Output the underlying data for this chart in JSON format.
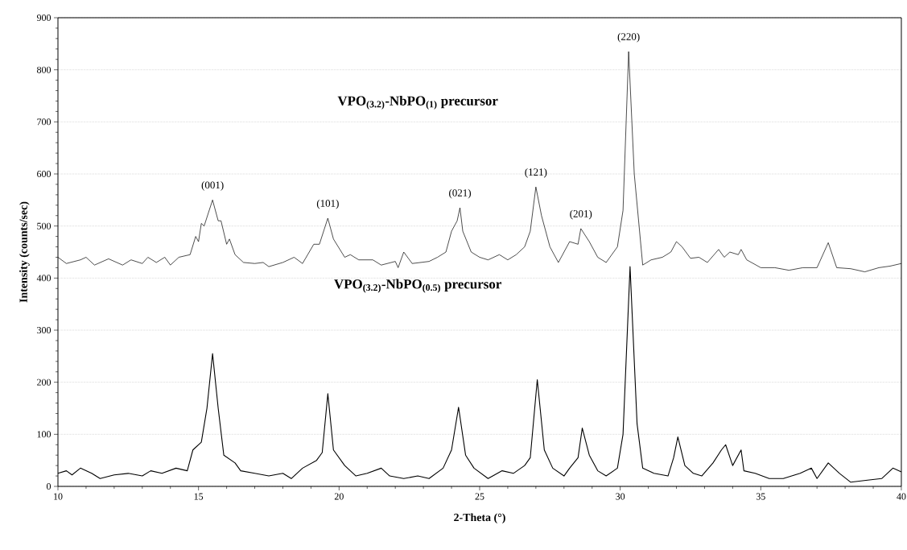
{
  "chart_data": {
    "type": "line",
    "xlabel": "2-Theta (°)",
    "ylabel": "Intensity (counts/sec)",
    "xlim": [
      10,
      40
    ],
    "ylim": [
      0,
      900
    ],
    "xticks": [
      10,
      15,
      20,
      25,
      30,
      35,
      40
    ],
    "yticks": [
      0,
      100,
      200,
      300,
      400,
      500,
      600,
      700,
      800,
      900
    ],
    "grid": "y",
    "line_style": "solid",
    "series": [
      {
        "name": "**VPO$_{(3.2)}$-NbPO$_{(1)}$  precursor**",
        "color": "#000000",
        "x": [
          10,
          10.3,
          10.8,
          11,
          11.3,
          11.8,
          12.3,
          12.6,
          13,
          13.2,
          13.5,
          13.8,
          14,
          14.3,
          14.7,
          14.9,
          15.0,
          15.1,
          15.2,
          15.5,
          15.7,
          15.8,
          16,
          16.1,
          16.3,
          16.6,
          17,
          17.3,
          17.5,
          18,
          18.4,
          18.7,
          19.1,
          19.3,
          19.6,
          19.8,
          20.2,
          20.4,
          20.7,
          21.2,
          21.5,
          22,
          22.1,
          22.3,
          22.6,
          23.2,
          23.5,
          23.8,
          24.0,
          24.2,
          24.3,
          24.4,
          24.7,
          25,
          25.3,
          25.7,
          26,
          26.3,
          26.6,
          26.8,
          27.0,
          27.2,
          27.5,
          27.8,
          28.0,
          28.2,
          28.5,
          28.6,
          28.9,
          29.2,
          29.5,
          29.9,
          30.1,
          30.3,
          30.5,
          30.8,
          31.1,
          31.5,
          31.8,
          32.0,
          32.2,
          32.5,
          32.8,
          33.1,
          33.5,
          33.7,
          33.9,
          34.2,
          34.3,
          34.5,
          35,
          35.5,
          36,
          36.5,
          37,
          37.4,
          37.7,
          38.2,
          38.7,
          39.2,
          39.6,
          40
        ],
        "values": [
          440,
          428,
          435,
          440,
          425,
          437,
          425,
          435,
          428,
          440,
          430,
          440,
          425,
          440,
          445,
          480,
          470,
          505,
          500,
          550,
          510,
          510,
          465,
          475,
          445,
          430,
          428,
          430,
          422,
          430,
          440,
          428,
          465,
          465,
          515,
          475,
          440,
          445,
          435,
          435,
          425,
          432,
          420,
          450,
          428,
          432,
          440,
          450,
          490,
          510,
          535,
          490,
          450,
          440,
          435,
          445,
          435,
          445,
          460,
          490,
          575,
          520,
          460,
          430,
          450,
          470,
          465,
          495,
          470,
          440,
          430,
          460,
          530,
          835,
          600,
          425,
          435,
          440,
          450,
          470,
          460,
          438,
          440,
          430,
          455,
          440,
          450,
          445,
          455,
          435,
          420,
          420,
          415,
          420,
          420,
          468,
          420,
          418,
          412,
          420,
          423,
          428
        ]
      },
      {
        "name": "**VPO$_{(3.2)}$-NbPO$_{(0.5)}$ precursor**",
        "color": "#000000",
        "x": [
          10,
          10.3,
          10.5,
          10.8,
          11.2,
          11.5,
          12,
          12.5,
          13,
          13.3,
          13.7,
          14.2,
          14.6,
          14.8,
          15.1,
          15.3,
          15.5,
          15.7,
          15.9,
          16.3,
          16.5,
          17,
          17.5,
          18,
          18.3,
          18.7,
          19.2,
          19.4,
          19.6,
          19.8,
          20.2,
          20.6,
          21,
          21.5,
          21.8,
          22.3,
          22.8,
          23.2,
          23.7,
          24.0,
          24.25,
          24.5,
          24.8,
          25.3,
          25.8,
          26.2,
          26.6,
          26.8,
          27.05,
          27.3,
          27.6,
          28,
          28.2,
          28.5,
          28.65,
          28.9,
          29.2,
          29.5,
          29.9,
          30.1,
          30.35,
          30.6,
          30.8,
          31.2,
          31.7,
          31.9,
          32.05,
          32.3,
          32.6,
          32.9,
          33.3,
          33.6,
          33.75,
          34.0,
          34.3,
          34.4,
          34.8,
          35.3,
          35.8,
          36.4,
          36.8,
          37.0,
          37.4,
          37.8,
          38.2,
          38.8,
          39.3,
          39.7,
          40
        ],
        "values": [
          25,
          30,
          22,
          35,
          25,
          15,
          22,
          25,
          20,
          30,
          25,
          35,
          30,
          70,
          85,
          150,
          255,
          150,
          60,
          45,
          30,
          25,
          20,
          25,
          15,
          35,
          50,
          65,
          178,
          70,
          40,
          20,
          25,
          35,
          20,
          15,
          20,
          15,
          35,
          70,
          152,
          60,
          35,
          15,
          30,
          25,
          40,
          55,
          205,
          70,
          35,
          20,
          35,
          55,
          112,
          60,
          30,
          20,
          35,
          100,
          422,
          120,
          35,
          25,
          20,
          55,
          95,
          40,
          25,
          20,
          45,
          70,
          80,
          40,
          70,
          30,
          25,
          15,
          15,
          25,
          35,
          15,
          45,
          25,
          8,
          12,
          15,
          35,
          28
        ]
      }
    ],
    "annotations": [
      {
        "text": "(001)",
        "x": 15.5,
        "y": 550
      },
      {
        "text": "(101)",
        "x": 19.6,
        "y": 515
      },
      {
        "text": "(021)",
        "x": 24.3,
        "y": 535
      },
      {
        "text": "(121)",
        "x": 27.0,
        "y": 575
      },
      {
        "text": "(201)",
        "x": 28.6,
        "y": 495
      },
      {
        "text": "(220)",
        "x": 30.3,
        "y": 835
      }
    ]
  }
}
